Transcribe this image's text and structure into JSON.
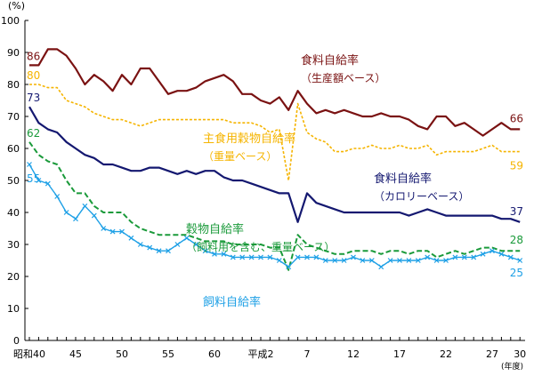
{
  "chart_data": {
    "type": "line",
    "ylabel": "(%)",
    "xlabel": "(年度)",
    "ylim": [
      0,
      100
    ],
    "yticks": [
      0,
      10,
      20,
      30,
      40,
      50,
      60,
      70,
      80,
      90,
      100
    ],
    "grid": false,
    "x": [
      1965,
      1966,
      1967,
      1968,
      1969,
      1970,
      1971,
      1972,
      1973,
      1974,
      1975,
      1976,
      1977,
      1978,
      1979,
      1980,
      1981,
      1982,
      1983,
      1984,
      1985,
      1986,
      1987,
      1988,
      1989,
      1990,
      1991,
      1992,
      1993,
      1994,
      1995,
      1996,
      1997,
      1998,
      1999,
      2000,
      2001,
      2002,
      2003,
      2004,
      2005,
      2006,
      2007,
      2008,
      2009,
      2010,
      2011,
      2012,
      2013,
      2014,
      2015,
      2016,
      2017,
      2018
    ],
    "xticks": [
      {
        "year": 1965,
        "label": "昭和40"
      },
      {
        "year": 1970,
        "label": "45"
      },
      {
        "year": 1975,
        "label": "50"
      },
      {
        "year": 1980,
        "label": "55"
      },
      {
        "year": 1985,
        "label": "60"
      },
      {
        "year": 1990,
        "label": "平成2"
      },
      {
        "year": 1995,
        "label": "7"
      },
      {
        "year": 2000,
        "label": "12"
      },
      {
        "year": 2005,
        "label": "17"
      },
      {
        "year": 2010,
        "label": "22"
      },
      {
        "year": 2015,
        "label": "27"
      },
      {
        "year": 2018,
        "label": "30"
      }
    ],
    "series": [
      {
        "name": "食料自給率（生産額ベース）",
        "name_lines": [
          "食料自給率",
          "（生産額ベース）"
        ],
        "color": "#7a1212",
        "style": "solid",
        "start_label": "86",
        "end_label": "66",
        "values": [
          86,
          86,
          91,
          91,
          89,
          85,
          80,
          83,
          81,
          78,
          83,
          80,
          85,
          85,
          81,
          77,
          78,
          78,
          79,
          81,
          82,
          83,
          81,
          77,
          77,
          75,
          74,
          76,
          72,
          78,
          74,
          71,
          72,
          71,
          72,
          71,
          70,
          70,
          71,
          70,
          70,
          69,
          67,
          66,
          70,
          70,
          67,
          68,
          66,
          64,
          66,
          68,
          66,
          66
        ]
      },
      {
        "name": "主食用穀物自給率（重量ベース）",
        "name_lines": [
          "主食用穀物自給率",
          "（重量ベース）"
        ],
        "color": "#f5b400",
        "style": "dotted",
        "start_label": "80",
        "end_label": "59",
        "values": [
          80,
          80,
          79,
          79,
          75,
          74,
          73,
          71,
          70,
          69,
          69,
          68,
          67,
          68,
          69,
          69,
          69,
          69,
          69,
          69,
          69,
          69,
          68,
          68,
          68,
          67,
          65,
          66,
          50,
          74,
          65,
          63,
          62,
          59,
          59,
          60,
          60,
          61,
          60,
          60,
          61,
          60,
          60,
          61,
          58,
          59,
          59,
          59,
          59,
          60,
          61,
          59,
          59,
          59
        ]
      },
      {
        "name": "食料自給率（カロリーベース）",
        "name_lines": [
          "食料自給率",
          "（カロリーベース）"
        ],
        "color": "#141870",
        "style": "solid",
        "start_label": "73",
        "end_label": "37",
        "values": [
          73,
          68,
          66,
          65,
          62,
          60,
          58,
          57,
          55,
          55,
          54,
          53,
          53,
          54,
          54,
          53,
          52,
          53,
          52,
          53,
          53,
          51,
          50,
          50,
          49,
          48,
          47,
          46,
          46,
          37,
          46,
          43,
          42,
          41,
          40,
          40,
          40,
          40,
          40,
          40,
          40,
          39,
          40,
          41,
          40,
          39,
          39,
          39,
          39,
          39,
          39,
          38,
          38,
          37
        ]
      },
      {
        "name": "穀物自給率（飼料用を含む、重量ベース）",
        "name_lines": [
          "穀物自給率",
          "（飼料用を含む、重量ベース）"
        ],
        "color": "#1a9a3a",
        "style": "dashed",
        "start_label": "62",
        "end_label": "28",
        "values": [
          62,
          58,
          56,
          55,
          50,
          46,
          46,
          42,
          40,
          40,
          40,
          37,
          35,
          34,
          33,
          33,
          33,
          33,
          32,
          31,
          31,
          31,
          30,
          30,
          30,
          30,
          29,
          29,
          22,
          33,
          30,
          29,
          28,
          27,
          27,
          28,
          28,
          28,
          27,
          28,
          28,
          27,
          28,
          28,
          26,
          27,
          28,
          27,
          28,
          29,
          29,
          28,
          28,
          28
        ]
      },
      {
        "name": "飼料自給率",
        "name_lines": [
          "飼料自給率"
        ],
        "color": "#1ea0e6",
        "style": "solid-markers",
        "start_label": "55",
        "end_label": "25",
        "values": [
          55,
          50,
          49,
          45,
          40,
          38,
          42,
          39,
          35,
          34,
          34,
          32,
          30,
          29,
          28,
          28,
          30,
          32,
          30,
          28,
          27,
          27,
          26,
          26,
          26,
          26,
          26,
          25,
          23,
          26,
          26,
          26,
          25,
          25,
          25,
          26,
          25,
          25,
          23,
          25,
          25,
          25,
          25,
          26,
          25,
          25,
          26,
          26,
          26,
          27,
          28,
          27,
          26,
          25
        ]
      }
    ]
  }
}
